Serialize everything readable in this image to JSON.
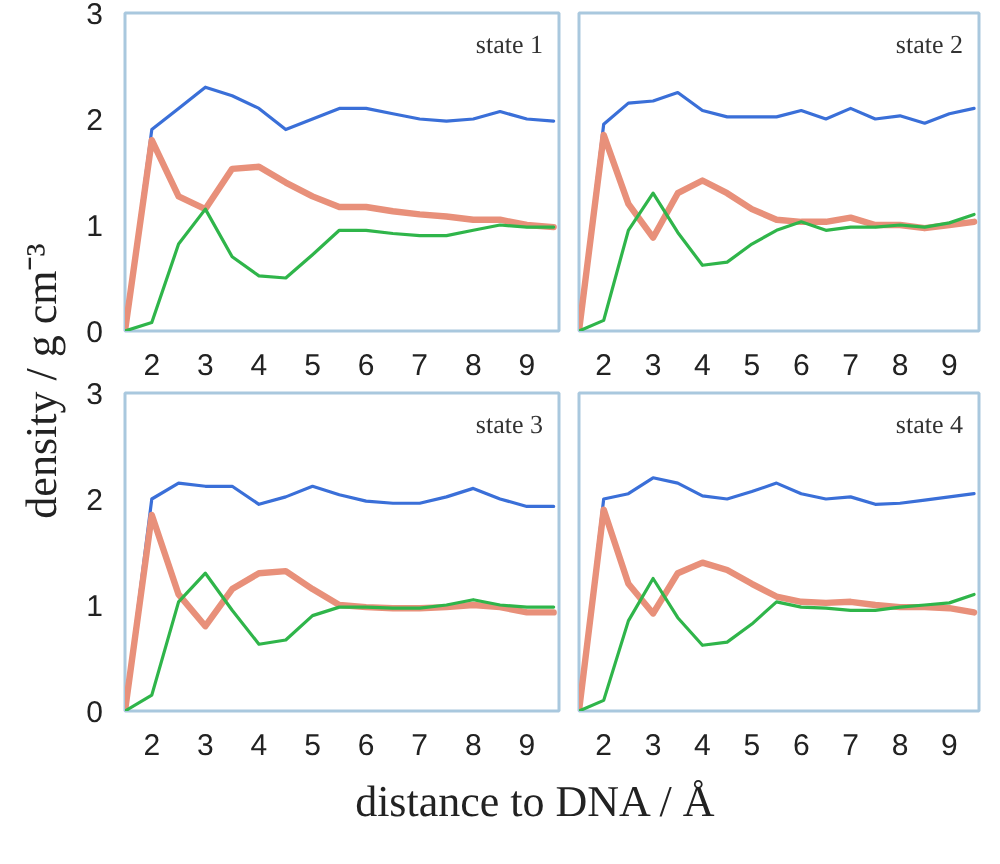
{
  "chart_data": [
    {
      "type": "line",
      "title": "state 1",
      "ylabel": "density / g cm⁻³",
      "x": [
        1.5,
        2,
        2.5,
        3,
        3.5,
        4,
        4.5,
        5,
        5.5,
        6,
        6.5,
        7,
        7.5,
        8,
        8.5,
        9,
        9.5
      ],
      "series": [
        {
          "color": "#3a6fd8",
          "values": [
            0,
            1.9,
            2.1,
            2.3,
            2.22,
            2.1,
            1.9,
            2.0,
            2.1,
            2.1,
            2.05,
            2.0,
            1.98,
            2.0,
            2.07,
            2.0,
            1.98
          ]
        },
        {
          "color": "#e8907a",
          "values": [
            0,
            1.8,
            1.27,
            1.15,
            1.53,
            1.55,
            1.4,
            1.27,
            1.17,
            1.17,
            1.13,
            1.1,
            1.08,
            1.05,
            1.05,
            1.0,
            0.98
          ]
        },
        {
          "color": "#2fb54a",
          "values": [
            0,
            0.08,
            0.82,
            1.15,
            0.7,
            0.52,
            0.5,
            0.72,
            0.95,
            0.95,
            0.92,
            0.9,
            0.9,
            0.95,
            1.0,
            0.98,
            0.98
          ]
        }
      ],
      "xlim": [
        1.5,
        9.6
      ],
      "ylim": [
        0,
        3
      ],
      "xticks": [
        2,
        3,
        4,
        5,
        6,
        7,
        8,
        9
      ],
      "yticks": [
        0,
        1,
        2,
        3
      ]
    },
    {
      "type": "line",
      "title": "state 2",
      "x": [
        1.5,
        2,
        2.5,
        3,
        3.5,
        4,
        4.5,
        5,
        5.5,
        6,
        6.5,
        7,
        7.5,
        8,
        8.5,
        9,
        9.5
      ],
      "series": [
        {
          "color": "#3a6fd8",
          "values": [
            0,
            1.95,
            2.15,
            2.17,
            2.25,
            2.08,
            2.02,
            2.02,
            2.02,
            2.08,
            2.0,
            2.1,
            2.0,
            2.03,
            1.96,
            2.05,
            2.1
          ]
        },
        {
          "color": "#e8907a",
          "values": [
            0,
            1.85,
            1.2,
            0.88,
            1.3,
            1.42,
            1.3,
            1.15,
            1.05,
            1.03,
            1.03,
            1.07,
            1.0,
            1.0,
            0.97,
            1.0,
            1.03
          ]
        },
        {
          "color": "#2fb54a",
          "values": [
            0,
            0.1,
            0.95,
            1.3,
            0.93,
            0.62,
            0.65,
            0.82,
            0.95,
            1.03,
            0.95,
            0.98,
            0.98,
            1.0,
            0.98,
            1.02,
            1.1
          ]
        }
      ],
      "xlim": [
        1.5,
        9.6
      ],
      "ylim": [
        0,
        3
      ],
      "xticks": [
        2,
        3,
        4,
        5,
        6,
        7,
        8,
        9
      ],
      "yticks": [
        0,
        1,
        2,
        3
      ],
      "tick_labels": "x"
    },
    {
      "type": "line",
      "title": "state 3",
      "xlabel": "distance to DNA / Å",
      "x": [
        1.5,
        2,
        2.5,
        3,
        3.5,
        4,
        4.5,
        5,
        5.5,
        6,
        6.5,
        7,
        7.5,
        8,
        8.5,
        9,
        9.5
      ],
      "series": [
        {
          "color": "#3a6fd8",
          "values": [
            0,
            2.0,
            2.15,
            2.12,
            2.12,
            1.95,
            2.02,
            2.12,
            2.04,
            1.98,
            1.96,
            1.96,
            2.02,
            2.1,
            2.0,
            1.93,
            1.93
          ]
        },
        {
          "color": "#e8907a",
          "values": [
            0,
            1.85,
            1.1,
            0.8,
            1.15,
            1.3,
            1.32,
            1.15,
            1.0,
            0.98,
            0.97,
            0.97,
            0.98,
            1.0,
            0.98,
            0.93,
            0.93
          ]
        },
        {
          "color": "#2fb54a",
          "values": [
            0,
            0.15,
            1.03,
            1.3,
            0.95,
            0.63,
            0.67,
            0.9,
            0.98,
            0.98,
            0.97,
            0.97,
            1.0,
            1.05,
            1.0,
            0.98,
            0.98
          ]
        }
      ],
      "xlim": [
        1.5,
        9.6
      ],
      "ylim": [
        0,
        3
      ],
      "xticks": [
        2,
        3,
        4,
        5,
        6,
        7,
        8,
        9
      ],
      "yticks": [
        0,
        1,
        2,
        3
      ]
    },
    {
      "type": "line",
      "title": "state 4",
      "x": [
        1.5,
        2,
        2.5,
        3,
        3.5,
        4,
        4.5,
        5,
        5.5,
        6,
        6.5,
        7,
        7.5,
        8,
        8.5,
        9,
        9.5
      ],
      "series": [
        {
          "color": "#3a6fd8",
          "values": [
            0,
            2.0,
            2.05,
            2.2,
            2.15,
            2.03,
            2.0,
            2.07,
            2.15,
            2.05,
            2.0,
            2.02,
            1.95,
            1.96,
            1.99,
            2.02,
            2.05
          ]
        },
        {
          "color": "#e8907a",
          "values": [
            0,
            1.9,
            1.2,
            0.92,
            1.3,
            1.4,
            1.33,
            1.2,
            1.08,
            1.03,
            1.02,
            1.03,
            1.0,
            0.98,
            0.98,
            0.97,
            0.93
          ]
        },
        {
          "color": "#2fb54a",
          "values": [
            0,
            0.1,
            0.85,
            1.25,
            0.88,
            0.62,
            0.65,
            0.82,
            1.03,
            0.98,
            0.97,
            0.95,
            0.95,
            0.98,
            1.0,
            1.02,
            1.1
          ]
        }
      ],
      "xlim": [
        1.5,
        9.6
      ],
      "ylim": [
        0,
        3
      ],
      "xticks": [
        2,
        3,
        4,
        5,
        6,
        7,
        8,
        9
      ],
      "yticks": [
        0,
        1,
        2,
        3
      ],
      "tick_labels": "x"
    }
  ]
}
